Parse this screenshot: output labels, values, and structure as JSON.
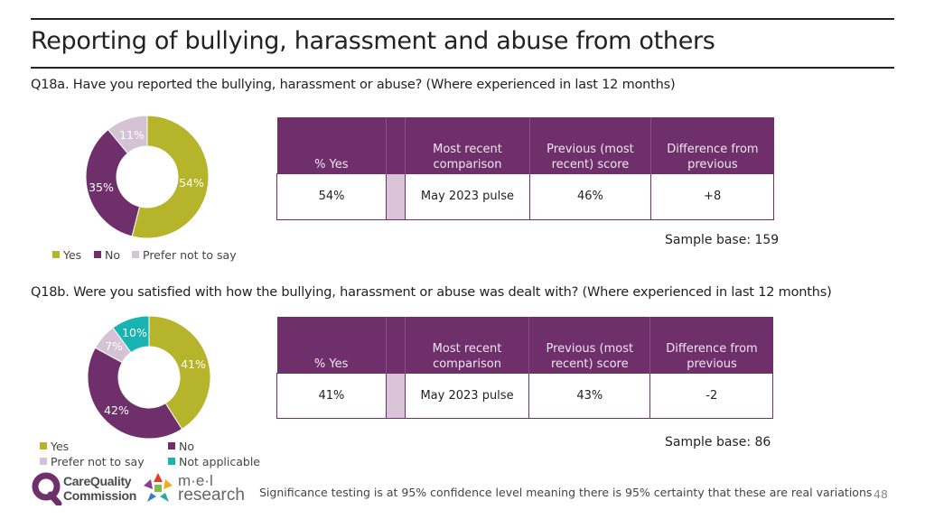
{
  "page": {
    "title": "Reporting of bullying, harassment and abuse from others",
    "page_number": "48",
    "footnote": "Significance testing is at 95% confidence level meaning there is 95% certainty that these are real variations",
    "logos": {
      "cqc_line1": "CareQuality",
      "cqc_line2": "Commission",
      "mel_line1": "m·e·l",
      "mel_line2": "research"
    }
  },
  "colors": {
    "yes": "#b6b42a",
    "no": "#6f2f6b",
    "prefer_not": "#d4c3d4",
    "not_applicable": "#17b4b1",
    "header": "#6f2f6b"
  },
  "sections": [
    {
      "question": "Q18a. Have you reported the bullying, harassment or abuse? (Where experienced in last 12 months)",
      "table": {
        "headers": [
          "% Yes",
          "Most recent comparison",
          "Previous (most recent) score",
          "Difference from previous"
        ],
        "values": {
          "yes": "54%",
          "comparison": "May 2023 pulse",
          "previous": "46%",
          "difference": "+8"
        }
      },
      "sample_base": "Sample base: 159",
      "legend": [
        "Yes",
        "No",
        "Prefer not to say"
      ]
    },
    {
      "question": "Q18b. Were you satisfied with how the bullying, harassment or abuse was dealt with? (Where experienced in last 12 months)",
      "table": {
        "headers": [
          "% Yes",
          "Most recent comparison",
          "Previous (most recent) score",
          "Difference from previous"
        ],
        "values": {
          "yes": "41%",
          "comparison": "May 2023 pulse",
          "previous": "43%",
          "difference": "-2"
        }
      },
      "sample_base": "Sample base: 86",
      "legend": [
        "Yes",
        "No",
        "Prefer not to say",
        "Not applicable"
      ]
    }
  ],
  "chart_data": [
    {
      "type": "pie",
      "categories": [
        "Yes",
        "No",
        "Prefer not to say"
      ],
      "values": [
        54,
        35,
        11
      ],
      "labels": [
        "54%",
        "35%",
        "11%"
      ],
      "unit": "%"
    },
    {
      "type": "pie",
      "categories": [
        "Yes",
        "No",
        "Prefer not to say",
        "Not applicable"
      ],
      "values": [
        41,
        42,
        7,
        10
      ],
      "labels": [
        "41%",
        "42%",
        "7%",
        "10%"
      ],
      "unit": "%"
    }
  ]
}
